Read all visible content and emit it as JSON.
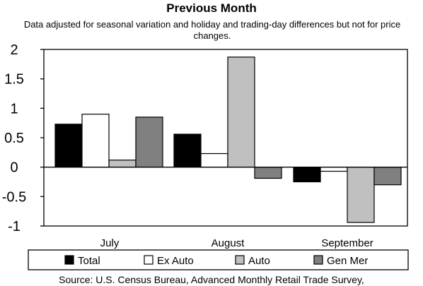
{
  "chart_data": {
    "type": "bar",
    "title": "Previous Month",
    "subtitle": "Data adjusted for seasonal variation and holiday and trading-day differences but not for price changes.",
    "categories": [
      "July",
      "August",
      "September"
    ],
    "series": [
      {
        "name": "Total",
        "values": [
          0.73,
          0.56,
          -0.25
        ],
        "color": "#000000"
      },
      {
        "name": "Ex Auto",
        "values": [
          0.9,
          0.23,
          -0.07
        ],
        "color": "#ffffff"
      },
      {
        "name": "Auto",
        "values": [
          0.12,
          1.87,
          -0.94
        ],
        "color": "#c0c0c0"
      },
      {
        "name": "Gen Mer",
        "values": [
          0.85,
          -0.19,
          -0.3
        ],
        "color": "#808080"
      }
    ],
    "ylim": [
      -1,
      2
    ],
    "yticks": [
      "2",
      "1.5",
      "1",
      "0.5",
      "0",
      "-0.5",
      "-1"
    ],
    "ytick_values": [
      2,
      1.5,
      1,
      0.5,
      0,
      -0.5,
      -1
    ],
    "legend_position": "bottom",
    "source": "Source: U.S. Census Bureau, Advanced Monthly Retail Trade Survey,"
  }
}
